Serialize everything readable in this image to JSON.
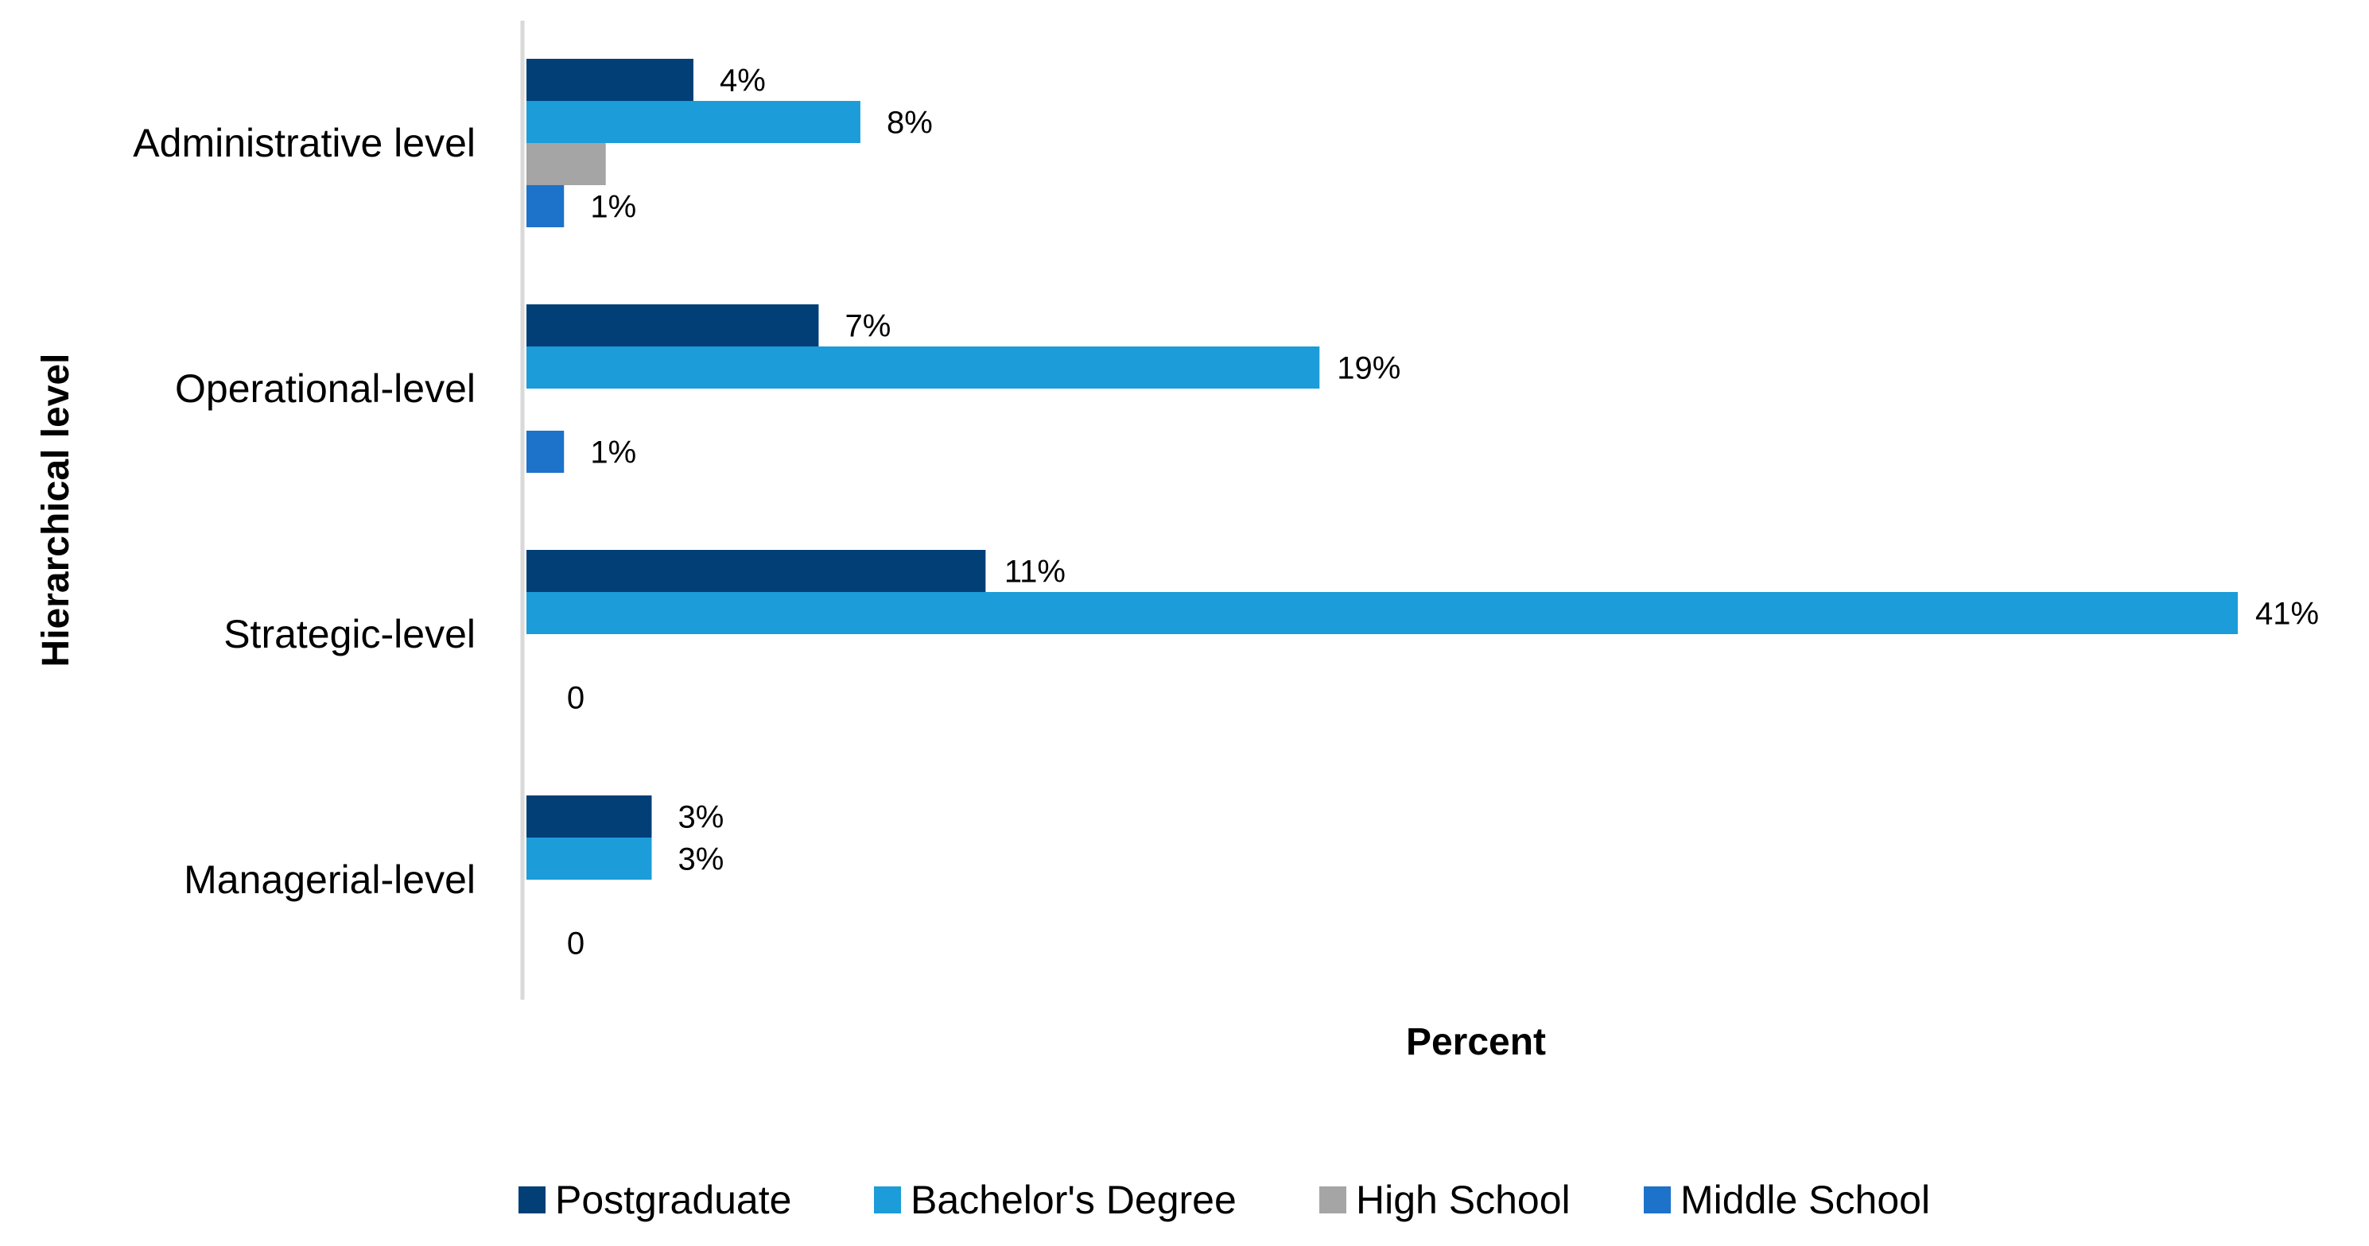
{
  "chart_data": {
    "type": "bar",
    "orientation": "horizontal",
    "title": "",
    "xlabel": "Percent",
    "ylabel": "Hierarchical level",
    "xlim": [
      0,
      41
    ],
    "grid": false,
    "legend_position": "bottom",
    "categories": [
      "Administrative level",
      "Operational-level",
      "Strategic-level",
      "Managerial-level"
    ],
    "series": [
      {
        "name": "Postgraduate",
        "color": "#023f77",
        "values": [
          4,
          7,
          11,
          3
        ],
        "labels": [
          "4%",
          "7%",
          "11%",
          "3%"
        ]
      },
      {
        "name": "Bachelor's Degree",
        "color": "#1c9cd8",
        "values": [
          8,
          19,
          41,
          3
        ],
        "labels": [
          "8%",
          "19%",
          "41%",
          "3%"
        ]
      },
      {
        "name": "High School",
        "color": "#a5a5a5",
        "values": [
          1.9,
          0,
          0,
          0
        ],
        "labels": [
          "",
          "",
          "",
          ""
        ]
      },
      {
        "name": "Middle School",
        "color": "#1d72c9",
        "values": [
          0.9,
          0.9,
          0,
          0
        ],
        "labels": [
          "1%",
          "1%",
          "0",
          "0"
        ]
      }
    ],
    "axis_color": "#d9d9d9"
  }
}
